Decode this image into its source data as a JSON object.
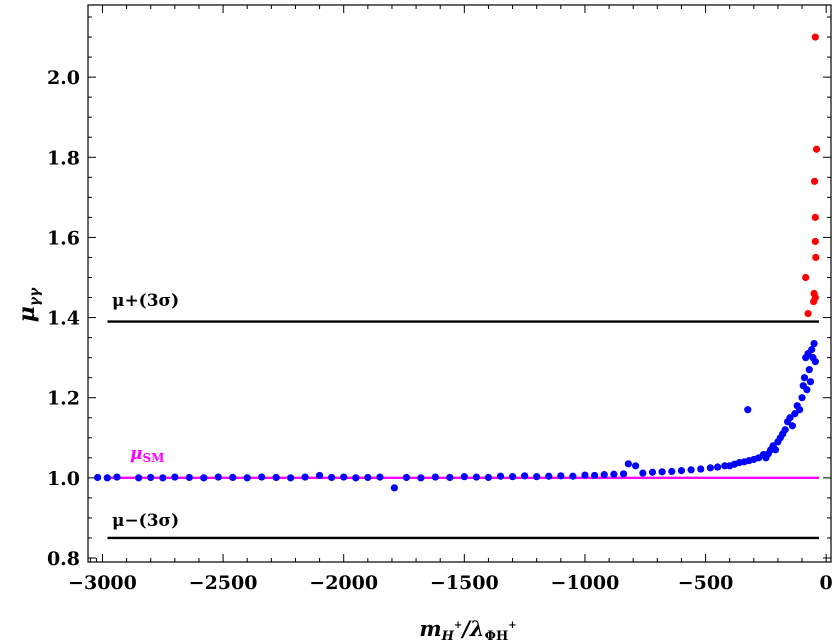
{
  "chart_data": {
    "type": "scatter",
    "xlabel": {
      "main": "m",
      "sub1": "H",
      "sup1": "+",
      "sep": "/λ",
      "sub2": "ΦH",
      "sup2": "+"
    },
    "ylabel": {
      "main": "μ",
      "sub": "γγ"
    },
    "xlim": [
      -3060,
      20
    ],
    "ylim": [
      0.79,
      2.18
    ],
    "xticks": [
      -3000,
      -2500,
      -2000,
      -1500,
      -1000,
      -500,
      0
    ],
    "xtick_labels": [
      "−3000",
      "−2500",
      "−2000",
      "−1500",
      "−1000",
      "−500",
      "0"
    ],
    "yticks": [
      0.8,
      1.0,
      1.2,
      1.4,
      1.6,
      1.8,
      2.0
    ],
    "ytick_labels": [
      "0.8",
      "1.0",
      "1.2",
      "1.4",
      "1.6",
      "1.8",
      "2.0"
    ],
    "grid": false,
    "reference_lines": [
      {
        "label": "μ+(3σ)",
        "y": 1.39,
        "color": "#000000"
      },
      {
        "label": "μSM",
        "label_main": "μ",
        "label_sub": "SM",
        "y": 1.0,
        "color": "#ff00ff"
      },
      {
        "label": "μ−(3σ)",
        "y": 0.85,
        "color": "#000000"
      }
    ],
    "series": [
      {
        "color": "#ff0000",
        "points": [
          [
            -45,
            2.1
          ],
          [
            -40,
            1.82
          ],
          [
            -48,
            1.74
          ],
          [
            -45,
            1.65
          ],
          [
            -45,
            1.59
          ],
          [
            -43,
            1.55
          ],
          [
            -85,
            1.5
          ],
          [
            -50,
            1.46
          ],
          [
            -45,
            1.45
          ],
          [
            -52,
            1.44
          ],
          [
            -75,
            1.41
          ]
        ]
      },
      {
        "color": "#0000ff",
        "points": [
          [
            -3020,
            1.001
          ],
          [
            -2980,
            1.0
          ],
          [
            -2940,
            1.002
          ],
          [
            -2850,
            1.0
          ],
          [
            -2800,
            1.001
          ],
          [
            -2750,
            1.0
          ],
          [
            -2700,
            1.002
          ],
          [
            -2640,
            1.001
          ],
          [
            -2580,
            1.0
          ],
          [
            -2520,
            1.002
          ],
          [
            -2460,
            1.001
          ],
          [
            -2400,
            1.0
          ],
          [
            -2340,
            1.002
          ],
          [
            -2280,
            1.001
          ],
          [
            -2220,
            1.0
          ],
          [
            -2160,
            1.002
          ],
          [
            -2100,
            1.006
          ],
          [
            -2050,
            1.001
          ],
          [
            -2000,
            1.002
          ],
          [
            -1950,
            1.0
          ],
          [
            -1900,
            1.001
          ],
          [
            -1850,
            1.002
          ],
          [
            -1790,
            0.975
          ],
          [
            -1740,
            1.001
          ],
          [
            -1680,
            1.0
          ],
          [
            -1620,
            1.002
          ],
          [
            -1560,
            1.001
          ],
          [
            -1500,
            1.003
          ],
          [
            -1450,
            1.002
          ],
          [
            -1400,
            1.001
          ],
          [
            -1350,
            1.004
          ],
          [
            -1300,
            1.003
          ],
          [
            -1250,
            1.005
          ],
          [
            -1200,
            1.003
          ],
          [
            -1150,
            1.004
          ],
          [
            -1100,
            1.005
          ],
          [
            -1050,
            1.004
          ],
          [
            -1000,
            1.007
          ],
          [
            -960,
            1.006
          ],
          [
            -920,
            1.008
          ],
          [
            -880,
            1.009
          ],
          [
            -840,
            1.01
          ],
          [
            -820,
            1.035
          ],
          [
            -790,
            1.03
          ],
          [
            -760,
            1.012
          ],
          [
            -720,
            1.014
          ],
          [
            -680,
            1.015
          ],
          [
            -640,
            1.016
          ],
          [
            -600,
            1.018
          ],
          [
            -560,
            1.02
          ],
          [
            -520,
            1.022
          ],
          [
            -480,
            1.025
          ],
          [
            -450,
            1.027
          ],
          [
            -420,
            1.03
          ],
          [
            -400,
            1.03
          ],
          [
            -380,
            1.034
          ],
          [
            -360,
            1.038
          ],
          [
            -340,
            1.04
          ],
          [
            -325,
            1.17
          ],
          [
            -320,
            1.043
          ],
          [
            -300,
            1.046
          ],
          [
            -280,
            1.05
          ],
          [
            -260,
            1.058
          ],
          [
            -250,
            1.05
          ],
          [
            -240,
            1.06
          ],
          [
            -230,
            1.07
          ],
          [
            -220,
            1.08
          ],
          [
            -210,
            1.07
          ],
          [
            -200,
            1.09
          ],
          [
            -190,
            1.1
          ],
          [
            -180,
            1.11
          ],
          [
            -170,
            1.12
          ],
          [
            -160,
            1.14
          ],
          [
            -150,
            1.15
          ],
          [
            -140,
            1.13
          ],
          [
            -130,
            1.16
          ],
          [
            -120,
            1.18
          ],
          [
            -110,
            1.17
          ],
          [
            -100,
            1.2
          ],
          [
            -95,
            1.23
          ],
          [
            -90,
            1.25
          ],
          [
            -85,
            1.3
          ],
          [
            -80,
            1.22
          ],
          [
            -75,
            1.31
          ],
          [
            -70,
            1.27
          ],
          [
            -65,
            1.24
          ],
          [
            -60,
            1.32
          ],
          [
            -55,
            1.3
          ],
          [
            -50,
            1.335
          ],
          [
            -45,
            1.29
          ]
        ]
      }
    ]
  }
}
